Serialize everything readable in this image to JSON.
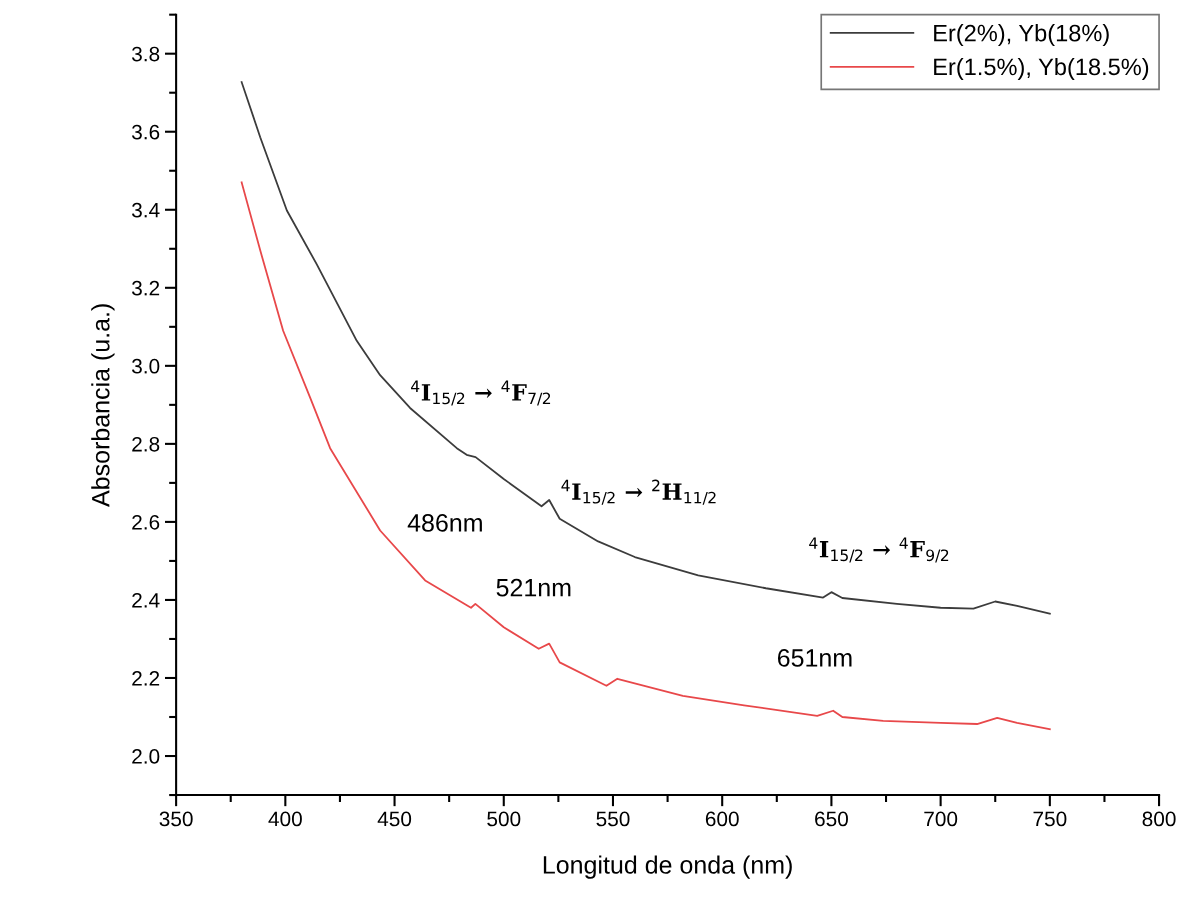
{
  "chart_data": {
    "type": "line",
    "xlabel": "Longitud de onda (nm)",
    "ylabel": "Absorbancia (u.a.)",
    "xlim": [
      350,
      800
    ],
    "ylim": [
      1.9,
      3.9
    ],
    "xticks": [
      350,
      {
        "value": 375,
        "label": null
      },
      400,
      {
        "value": 425,
        "label": null
      },
      450,
      {
        "value": 475,
        "label": null
      },
      500,
      {
        "value": 525,
        "label": null
      },
      550,
      {
        "value": 575,
        "label": null
      },
      600,
      {
        "value": 625,
        "label": null
      },
      650,
      {
        "value": 675,
        "label": null
      },
      700,
      {
        "value": 725,
        "label": null
      },
      750,
      {
        "value": 775,
        "label": null
      },
      800
    ],
    "yticks": [
      {
        "value": 1.9,
        "label": null
      },
      "2.0",
      {
        "value": 2.1,
        "label": null
      },
      {
        "value": 2.2,
        "label": "2.2"
      },
      {
        "value": 2.3,
        "label": null
      },
      {
        "value": 2.4,
        "label": "2.4"
      },
      {
        "value": 2.5,
        "label": null
      },
      {
        "value": 2.6,
        "label": "2.6"
      },
      {
        "value": 2.7,
        "label": null
      },
      {
        "value": 2.8,
        "label": "2.8"
      },
      {
        "value": 2.9,
        "label": null
      },
      {
        "value": 3.0,
        "label": "3.0"
      },
      {
        "value": 3.1,
        "label": null
      },
      {
        "value": 3.2,
        "label": "3.2"
      },
      {
        "value": 3.3,
        "label": null
      },
      {
        "value": 3.4,
        "label": "3.4"
      },
      {
        "value": 3.5,
        "label": null
      },
      {
        "value": 3.6,
        "label": "3.6"
      },
      {
        "value": 3.7,
        "label": null
      },
      {
        "value": 3.8,
        "label": "3.8"
      },
      {
        "value": 3.9,
        "label": null
      }
    ],
    "grid": false,
    "legend": "top right",
    "marker": "none",
    "line_style": "solid",
    "series": [
      {
        "name": "Er(2%), Yb(18%)",
        "color": "#3c3c3c",
        "x": [
          380,
          388.5,
          400.7,
          414.4,
          432.7,
          443.4,
          457.1,
          478.5,
          483,
          487.1,
          500,
          517.3,
          520.8,
          525.6,
          543.2,
          560,
          589,
          620,
          646.2,
          650,
          655,
          680,
          700,
          715,
          725,
          735,
          750
        ],
        "values": [
          3.727,
          3.586,
          3.398,
          3.26,
          3.064,
          2.976,
          2.892,
          2.789,
          2.772,
          2.766,
          2.71,
          2.64,
          2.656,
          2.608,
          2.55,
          2.51,
          2.463,
          2.43,
          2.406,
          2.42,
          2.405,
          2.39,
          2.38,
          2.378,
          2.396,
          2.385,
          2.365
        ]
      },
      {
        "name": "Er(1.5%), Yb(18.5%)",
        "color": "#e8484a",
        "x": [
          380,
          388.5,
          399,
          411.4,
          420.5,
          443.4,
          464,
          485,
          487,
          500,
          516,
          520.8,
          525.6,
          547,
          552,
          582,
          610,
          643.5,
          650.8,
          655,
          673.7,
          700,
          716.7,
          725.9,
          735,
          750
        ],
        "values": [
          3.47,
          3.296,
          3.09,
          2.918,
          2.789,
          2.578,
          2.45,
          2.38,
          2.39,
          2.33,
          2.275,
          2.288,
          2.24,
          2.18,
          2.198,
          2.154,
          2.13,
          2.103,
          2.116,
          2.1,
          2.09,
          2.085,
          2.082,
          2.098,
          2.085,
          2.069
        ]
      }
    ],
    "annotations": [
      "$^{4}$I$_{15/2}$ → $^{4}$F$_{7/2}$",
      "486nm",
      "$^{4}$I$_{15/2}$ → $^{2}$H$_{11/2}$",
      "521nm",
      "$^{4}$I$_{15/2}$ → $^{4}$F$_{9/2}$",
      "651nm"
    ]
  }
}
